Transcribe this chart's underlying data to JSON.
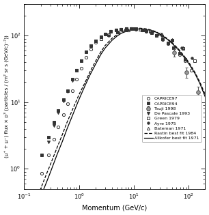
{
  "xlabel": "Momentum (GeV/c)",
  "ylabel": "(μ⁺ + μ⁻) flux × p³ (particles / (m² sr s (GeV/c)⁻²))",
  "xlim": [
    0.1,
    200
  ],
  "ylim": [
    0.5,
    300
  ],
  "CAPRICE97": {
    "x": [
      0.21,
      0.28,
      0.35,
      0.42,
      0.52,
      0.62,
      0.75,
      0.9,
      1.1,
      1.35,
      1.65,
      2.0,
      2.5,
      3.0,
      3.8,
      4.7,
      5.8,
      7.2,
      8.9,
      11,
      14,
      17,
      21,
      26,
      33,
      42,
      53,
      68,
      85,
      110
    ],
    "y": [
      0.85,
      1.6,
      2.8,
      4.2,
      6.5,
      9.5,
      15,
      22,
      32,
      47,
      63,
      79,
      95,
      106,
      115,
      121,
      124,
      126,
      126,
      125,
      121,
      116,
      109,
      100,
      88,
      76,
      65,
      52,
      42,
      30
    ],
    "marker": "o",
    "facecolor": "none",
    "edgecolor": "#333333",
    "markersize": 3.0,
    "label": "CAPRICE97"
  },
  "CAPRICE94": {
    "x": [
      0.21,
      0.28,
      0.35,
      0.42,
      0.52,
      0.62,
      0.75,
      0.9,
      1.1,
      1.35,
      1.65,
      2.0,
      2.5,
      3.0,
      3.8,
      4.7,
      5.8,
      7.2,
      8.9,
      11,
      14,
      17,
      21,
      26,
      33,
      42,
      53,
      68,
      85
    ],
    "y": [
      1.6,
      3.0,
      5.0,
      7.5,
      11,
      15,
      22,
      30,
      42,
      57,
      71,
      83,
      96,
      106,
      115,
      121,
      124,
      126,
      127,
      126,
      122,
      117,
      110,
      101,
      89,
      78,
      66,
      54,
      44
    ],
    "marker": "s",
    "facecolor": "#333333",
    "edgecolor": "#333333",
    "markersize": 3.0,
    "label": "CAPRICE94"
  },
  "Tsuji1998": {
    "x": [
      55,
      90,
      150
    ],
    "y": [
      55,
      28,
      14
    ],
    "yerr_lo": [
      7,
      5,
      3
    ],
    "yerr_hi": [
      7,
      5,
      3
    ],
    "marker": "o",
    "facecolor": "#999999",
    "edgecolor": "#555555",
    "markersize": 4.0,
    "label": "Tsuji 1998"
  },
  "DePascale1993": {
    "x": [
      0.28,
      0.35,
      0.42,
      0.52,
      0.62,
      0.75,
      0.9,
      1.1,
      1.35,
      1.65,
      2.0,
      2.5,
      3.0,
      3.8,
      4.7,
      5.8,
      7.2,
      8.9,
      11,
      14,
      17,
      21,
      26
    ],
    "y": [
      2.5,
      4.5,
      7.0,
      10.5,
      14.5,
      21,
      30,
      42,
      57,
      71,
      83,
      96,
      106,
      115,
      121,
      124,
      126,
      127,
      125,
      122,
      116,
      109,
      101
    ],
    "marker": "v",
    "facecolor": "#333333",
    "edgecolor": "#333333",
    "markersize": 3.0,
    "label": "De Pascale 1993"
  },
  "Green1979": {
    "x": [
      2.5,
      3.5,
      5.0,
      7.0,
      10,
      15,
      20,
      30,
      50,
      80,
      130
    ],
    "y": [
      90,
      102,
      113,
      121,
      126,
      122,
      116,
      104,
      86,
      64,
      42
    ],
    "marker": "s",
    "facecolor": "none",
    "edgecolor": "#333333",
    "markersize": 3.0,
    "label": "Green 1979"
  },
  "Ayre1975": {
    "x": [
      3.5,
      5.0,
      7.0,
      10,
      15,
      22,
      32,
      50,
      75,
      115
    ],
    "y": [
      100,
      113,
      121,
      126,
      121,
      112,
      100,
      84,
      65,
      46
    ],
    "marker": "o",
    "facecolor": "#333333",
    "edgecolor": "#333333",
    "markersize": 2.5,
    "label": "Ayre 1975"
  },
  "Bateman1971": {
    "x": [
      5.0,
      8.0,
      13,
      20,
      32,
      50,
      80
    ],
    "y": [
      114,
      122,
      125,
      118,
      105,
      88,
      66
    ],
    "marker": "^",
    "facecolor": "none",
    "edgecolor": "#333333",
    "markersize": 3.0,
    "label": "Bateman 1971"
  },
  "rastin_x": [
    0.12,
    0.15,
    0.2,
    0.25,
    0.3,
    0.4,
    0.5,
    0.6,
    0.8,
    1.0,
    1.3,
    1.6,
    2.0,
    2.5,
    3.0,
    4.0,
    5.0,
    6.0,
    8.0,
    10,
    13,
    16,
    20,
    25,
    32,
    40,
    50,
    65,
    80,
    100,
    130,
    160,
    200
  ],
  "rastin_y": [
    0.18,
    0.28,
    0.5,
    0.8,
    1.15,
    2.1,
    3.3,
    4.9,
    8.5,
    13,
    20,
    29,
    41,
    57,
    71,
    91,
    104,
    114,
    124,
    128,
    129,
    127,
    122,
    115,
    103,
    91,
    78,
    63,
    51,
    40,
    28,
    20,
    13
  ],
  "allkofer_x": [
    0.12,
    0.15,
    0.2,
    0.25,
    0.3,
    0.4,
    0.5,
    0.6,
    0.8,
    1.0,
    1.3,
    1.6,
    2.0,
    2.5,
    3.0,
    4.0,
    5.0,
    6.0,
    8.0,
    10,
    13,
    16,
    20,
    25,
    32,
    40,
    50,
    65,
    80,
    100,
    130,
    160,
    200
  ],
  "allkofer_y": [
    0.13,
    0.21,
    0.38,
    0.6,
    0.88,
    1.65,
    2.6,
    3.9,
    7.0,
    11,
    18,
    26,
    37,
    52,
    65,
    85,
    99,
    109,
    119,
    124,
    126,
    124,
    120,
    113,
    101,
    89,
    76,
    61,
    49,
    38,
    27,
    19,
    12
  ],
  "rastin_label": "Rastin best fit 1984",
  "allkofer_label": "Allkofer best fit 1971"
}
